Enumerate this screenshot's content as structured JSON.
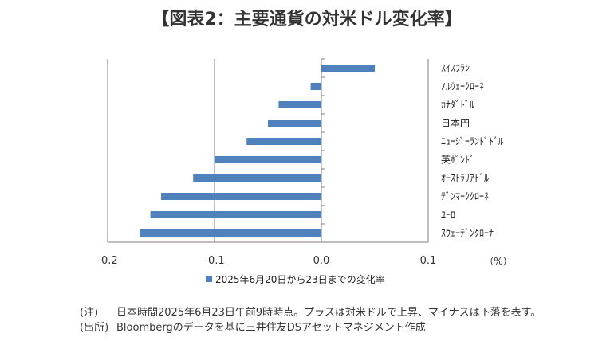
{
  "title": "【図表2：主要通貨の対米ドル変化率】",
  "chart_data": {
    "type": "bar",
    "orientation": "horizontal",
    "categories": [
      "ｽｲｽﾌﾗﾝ",
      "ﾉﾙｳｪｰｸﾛｰﾈ",
      "ｶﾅﾀﾞﾄﾞﾙ",
      "日本円",
      "ﾆｭｰｼﾞｰﾗﾝﾄﾞﾄﾞﾙ",
      "英ﾎﾟﾝﾄﾞ",
      "ｵｰｽﾄﾗﾘｱﾄﾞﾙ",
      "ﾃﾞﾝﾏｰｸｸﾛｰﾈ",
      "ﾕｰﾛ",
      "ｽｳｪｰﾃﾞﾝｸﾛｰﾅ"
    ],
    "series": [
      {
        "name": "2025年6月20日から23日までの変化率",
        "color": "#4f81bd",
        "values": [
          0.05,
          -0.01,
          -0.04,
          -0.05,
          -0.07,
          -0.1,
          -0.12,
          -0.15,
          -0.16,
          -0.17
        ]
      }
    ],
    "xlim": [
      -0.2,
      0.1
    ],
    "xticks": [
      "-0.2",
      "-0.1",
      "0.0",
      "0.1"
    ],
    "unit_label": "（%）",
    "grid": "vertical",
    "legend": "bottom"
  },
  "notes": [
    {
      "tag": "(注)",
      "text": "日本時間2025年6月23日午前9時時点。プラスは対米ドルで上昇、マイナスは下落を表す。"
    },
    {
      "tag": "(出所)",
      "text": "Bloombergのデータを基に三井住友DSアセットマネジメント作成"
    }
  ]
}
